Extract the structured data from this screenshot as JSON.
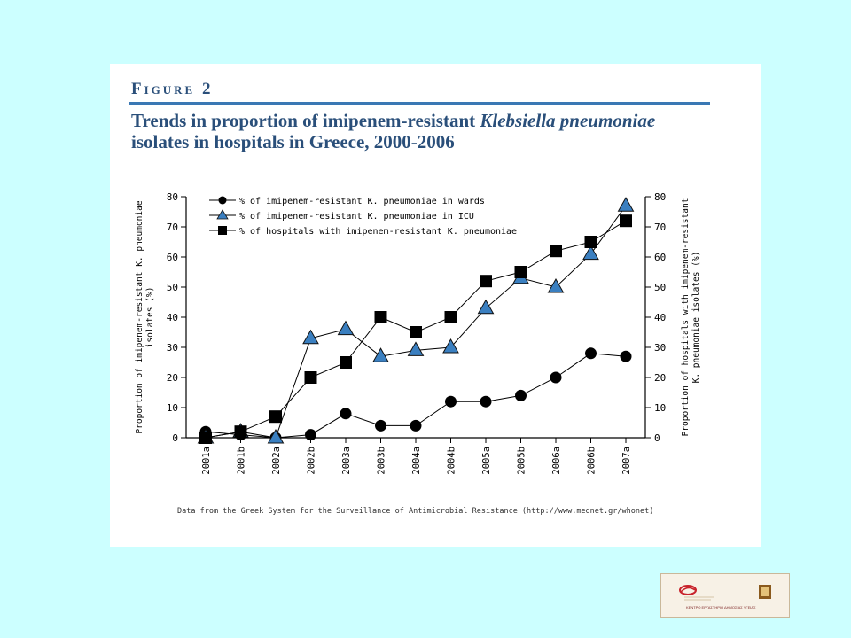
{
  "figure": {
    "label": "Figure 2",
    "title_plain_1": "Trends in proportion of imipenem-resistant ",
    "title_italic_1": "Klebsiella pneumoniae",
    "title_plain_2": " isolates in hospitals in Greece, 2000-2006",
    "source_note": "Data from the Greek System for the Surveillance of Antimicrobial Resistance (http://www.mednet.gr/whonet)"
  },
  "logo": {
    "caption": "ΚΕΝΤΡΟ ΕΡΓΑΣΤΗΡΙΟ ΔΗΜΟΣΙΑΣ ΥΓΕΙΑΣ"
  },
  "colors": {
    "background": "#ccffff",
    "title": "#2a4f7a",
    "rule": "#3a78b4",
    "triangle_fill": "#3a7fc0"
  },
  "chart_data": {
    "type": "line",
    "categories": [
      "2001a",
      "2001b",
      "2002a",
      "2002b",
      "2003a",
      "2003b",
      "2004a",
      "2004b",
      "2005a",
      "2005b",
      "2006a",
      "2006b",
      "2007a"
    ],
    "ylim": [
      0,
      80
    ],
    "yticks": [
      0,
      10,
      20,
      30,
      40,
      50,
      60,
      70,
      80
    ],
    "ylabel_left": "Proportion of imipenem-resistant K. pneumoniae isolates (%)",
    "ylabel_right": "Proportion of hospitals with imipenem-resistant K. pneumoniae isolates (%)",
    "legend_position": "top-left",
    "series": [
      {
        "name": "% of imipenem-resistant K. pneumoniae in wards",
        "marker": "circle",
        "values": [
          2,
          1,
          0,
          1,
          8,
          4,
          4,
          12,
          12,
          14,
          20,
          28,
          27
        ]
      },
      {
        "name": "% of imipenem-resistant K. pneumoniae in ICU",
        "marker": "triangle",
        "values": [
          0,
          2,
          0,
          33,
          36,
          27,
          29,
          30,
          43,
          53,
          50,
          61,
          77
        ]
      },
      {
        "name": "% of hospitals with imipenem-resistant K. pneumoniae",
        "marker": "square",
        "values": [
          0,
          2,
          7,
          20,
          25,
          40,
          35,
          40,
          52,
          55,
          62,
          65,
          72
        ]
      }
    ]
  }
}
